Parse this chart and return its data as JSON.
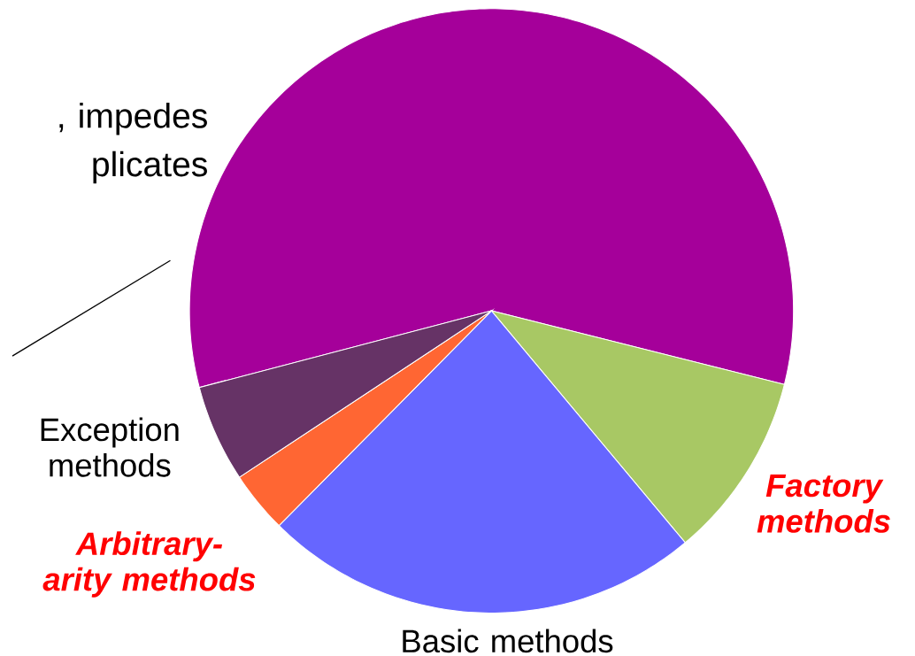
{
  "chart_data": {
    "type": "pie",
    "categories": [
      null,
      "Factory methods",
      "Basic methods",
      "Arbitrary-arity methods",
      "Exception methods"
    ],
    "values": [
      58,
      10,
      23.5,
      3.3,
      5.2
    ],
    "colors": [
      "#a5009a",
      "#a8c864",
      "#6666ff",
      "#ff6633",
      "#663366"
    ],
    "annotations": [
      ", impedes plicates"
    ]
  }
}
